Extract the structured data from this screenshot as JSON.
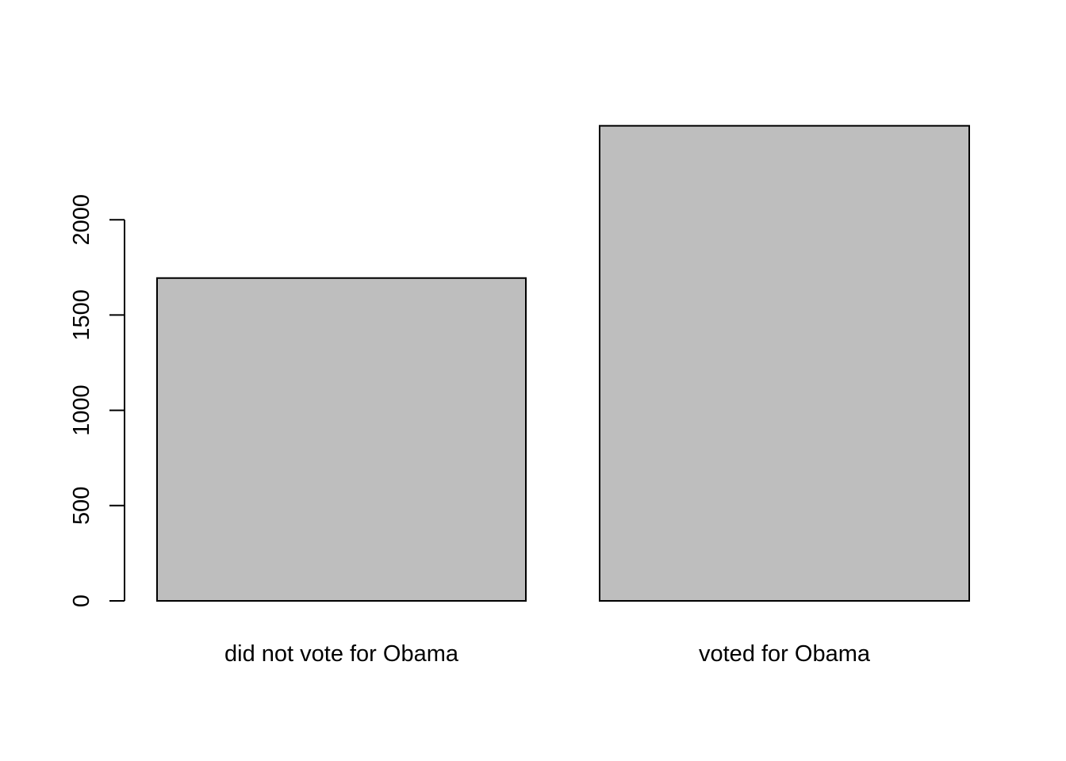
{
  "chart_data": {
    "type": "bar",
    "title": "",
    "xlabel": "",
    "ylabel": "",
    "categories": [
      "did not vote for Obama",
      "voted for Obama"
    ],
    "values": [
      1694,
      2493
    ],
    "ylim": [
      0,
      2500
    ],
    "yticks": [
      0,
      500,
      1000,
      1500,
      2000
    ],
    "ytick_labels": [
      "0",
      "500",
      "1000",
      "1500",
      "2000"
    ],
    "grid": false,
    "legend": "none",
    "colors": {
      "bar_fill": "#bebebe",
      "bar_stroke": "#000000",
      "axis": "#000000",
      "background": "#ffffff"
    }
  }
}
